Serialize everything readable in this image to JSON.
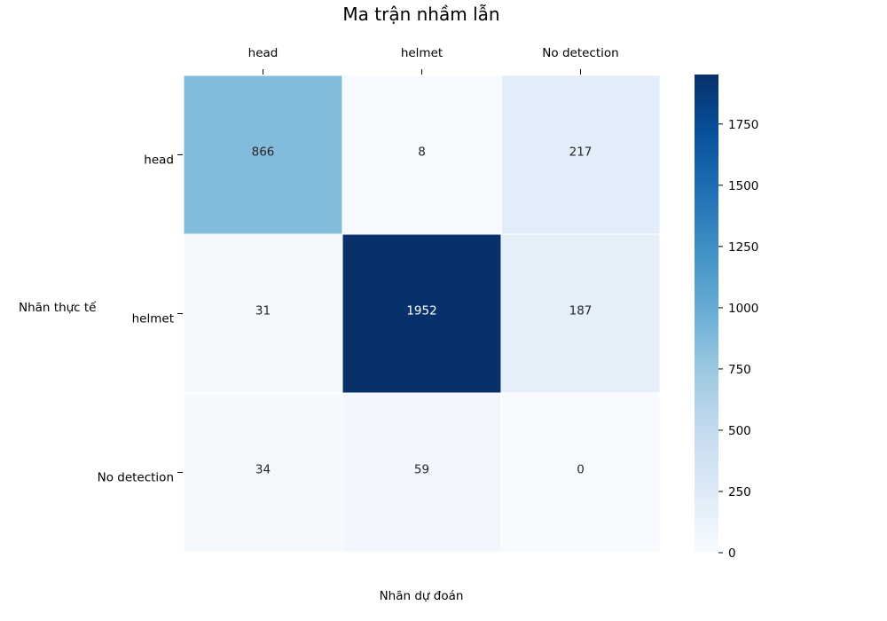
{
  "chart_data": {
    "type": "heatmap",
    "title": "Ma trận nhầm lẫn",
    "xlabel": "Nhãn dự đoán",
    "ylabel": "Nhãn thực tế",
    "x_categories": [
      "head",
      "helmet",
      "No detection"
    ],
    "y_categories": [
      "head",
      "helmet",
      "No detection"
    ],
    "values": [
      [
        866,
        8,
        217
      ],
      [
        31,
        1952,
        187
      ],
      [
        34,
        59,
        0
      ]
    ],
    "x_axis_position": "top",
    "colormap": "Blues",
    "colorbar": {
      "range": [
        0,
        1952
      ],
      "ticks": [
        0,
        250,
        500,
        750,
        1000,
        1250,
        1500,
        1750
      ]
    },
    "grid": false
  },
  "colors": {
    "scale": [
      "#f7fbff",
      "#deebf7",
      "#c6dbef",
      "#9ecae1",
      "#6baed6",
      "#4292c6",
      "#2171b5",
      "#08519c",
      "#08306b"
    ],
    "cell_border": "#ffffff"
  }
}
